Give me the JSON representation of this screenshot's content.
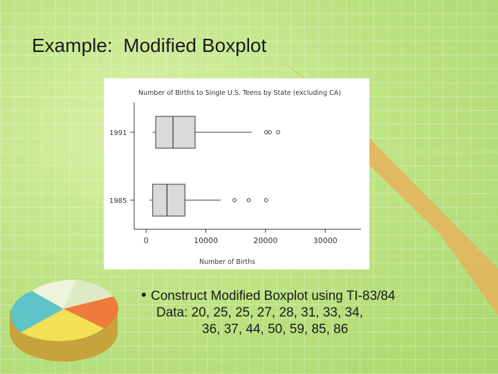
{
  "slide": {
    "title": "Example:  Modified Boxplot",
    "bullet": "Construct Modified Boxplot using TI-83/84",
    "data_line1": "Data: 20, 25, 25, 27, 28, 31, 33, 34,",
    "data_line2": "36, 37, 44, 50, 59, 85, 86"
  },
  "colors": {
    "background": "#b6e07a",
    "arrow": "#e8b25a",
    "box_fill": "#d9d9d9",
    "pie_teal": "#5fc4c9",
    "pie_white": "#eef3dc",
    "pie_orange": "#ee7a3c",
    "pie_yellow": "#f2e155"
  },
  "chart_data": {
    "type": "boxplot",
    "title": "Number of Births to Single U.S. Teens by State (excluding CA)",
    "xlabel": "Number of Births",
    "ylabel": "",
    "xlim": [
      -2000,
      36000
    ],
    "xticks": [
      0,
      10000,
      20000,
      30000
    ],
    "xtick_labels": [
      "0",
      "10000",
      "20000",
      "30000"
    ],
    "grid": false,
    "series": [
      {
        "name": "1991",
        "whisker_low": 1100,
        "q1": 1600,
        "median": 4500,
        "q3": 8200,
        "whisker_high": 17700,
        "outliers": [
          20100,
          20700,
          22100
        ]
      },
      {
        "name": "1985",
        "whisker_low": 600,
        "q1": 1100,
        "median": 3500,
        "q3": 6500,
        "whisker_high": 12500,
        "outliers": [
          14800,
          17200,
          20100
        ]
      }
    ]
  }
}
